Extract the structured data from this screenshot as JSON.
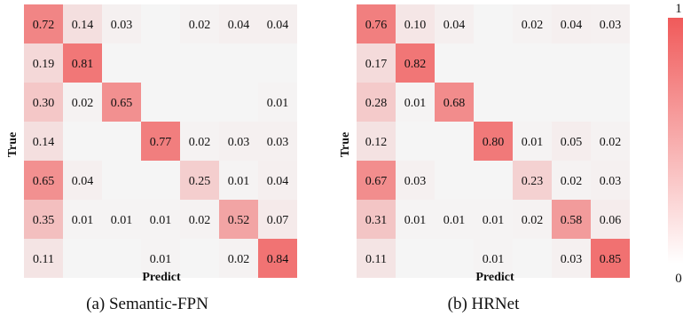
{
  "chart_data": [
    {
      "type": "heatmap",
      "caption": "(a) Semantic-FPN",
      "xlabel": "Predict",
      "ylabel": "True",
      "matrix": [
        [
          0.72,
          0.14,
          0.03,
          null,
          0.02,
          0.04,
          0.04
        ],
        [
          0.19,
          0.81,
          null,
          null,
          null,
          null,
          null
        ],
        [
          0.3,
          0.02,
          0.65,
          null,
          null,
          null,
          0.01
        ],
        [
          0.14,
          null,
          null,
          0.77,
          0.02,
          0.03,
          0.03
        ],
        [
          0.65,
          0.04,
          null,
          null,
          0.25,
          0.01,
          0.04
        ],
        [
          0.35,
          0.01,
          0.01,
          0.01,
          0.02,
          0.52,
          0.07
        ],
        [
          0.11,
          null,
          null,
          0.01,
          null,
          0.02,
          0.84
        ]
      ]
    },
    {
      "type": "heatmap",
      "caption": "(b) HRNet",
      "xlabel": "Predict",
      "ylabel": "True",
      "matrix": [
        [
          0.76,
          0.1,
          0.04,
          null,
          0.02,
          0.04,
          0.03
        ],
        [
          0.17,
          0.82,
          null,
          null,
          null,
          null,
          null
        ],
        [
          0.28,
          0.01,
          0.68,
          null,
          null,
          null,
          null
        ],
        [
          0.12,
          null,
          null,
          0.8,
          0.01,
          0.05,
          0.02
        ],
        [
          0.67,
          0.03,
          null,
          null,
          0.23,
          0.02,
          0.03
        ],
        [
          0.31,
          0.01,
          0.01,
          0.01,
          0.02,
          0.58,
          0.06
        ],
        [
          0.11,
          null,
          null,
          0.01,
          null,
          0.03,
          0.85
        ]
      ]
    }
  ],
  "colorbar": {
    "min_label": "0",
    "max_label": "1",
    "low_color": "#ffffff",
    "high_color": "#f05a5a"
  }
}
